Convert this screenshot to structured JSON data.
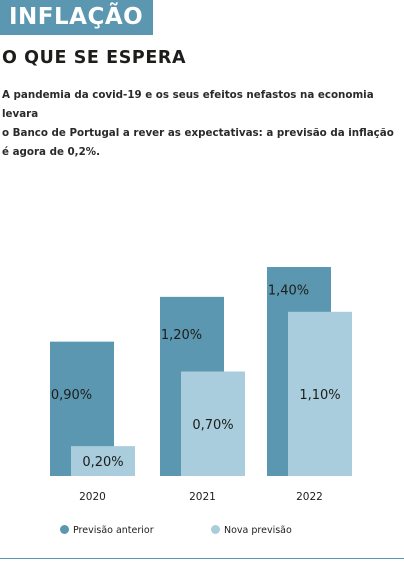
{
  "header": {
    "section_tag": "INFLAÇÃO",
    "headline": "O QUE SE ESPERA",
    "standfirst_line1": "A pandemia da covid-19 e os seus efeitos nefastos na economia levara",
    "standfirst_line2": "o Banco de Portugal a rever as expectativas: a previsão da inflação é agora de 0,2%."
  },
  "colors": {
    "accent": "#5b97b0",
    "previous": "#5b97b0",
    "new": "#a9cddc"
  },
  "chart_data": {
    "type": "bar",
    "categories": [
      "2020",
      "2021",
      "2022"
    ],
    "series": [
      {
        "name": "Previsão anterior",
        "values": [
          0.9,
          1.2,
          1.4
        ],
        "labels": [
          "0,90%",
          "1,20%",
          "1,40%"
        ]
      },
      {
        "name": "Nova previsão",
        "values": [
          0.2,
          0.7,
          1.1
        ],
        "labels": [
          "0,20%",
          "0,70%",
          "1,10%"
        ]
      }
    ],
    "title": "",
    "xlabel": "",
    "ylabel": "",
    "ylim": [
      0,
      1.5
    ],
    "grid": false,
    "legend_position": "bottom"
  }
}
